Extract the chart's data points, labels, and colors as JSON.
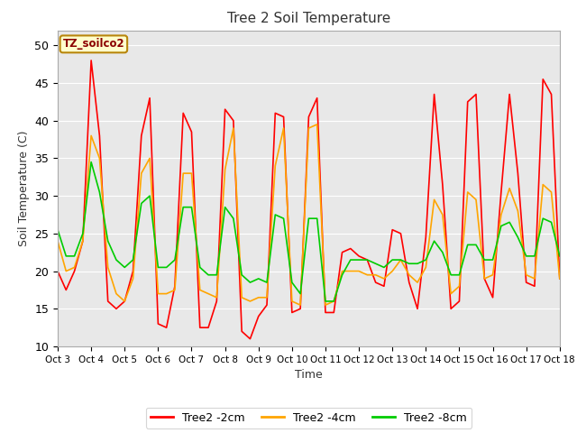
{
  "title": "Tree 2 Soil Temperature",
  "xlabel": "Time",
  "ylabel": "Soil Temperature (C)",
  "ylim": [
    10,
    52
  ],
  "xlim": [
    0,
    15
  ],
  "x_tick_labels": [
    "Oct 3",
    "Oct 4",
    "Oct 5",
    "Oct 6",
    "Oct 7",
    "Oct 8",
    "Oct 9",
    "Oct 10",
    "Oct 11",
    "Oct 12",
    "Oct 13",
    "Oct 14",
    "Oct 15",
    "Oct 16",
    "Oct 17",
    "Oct 18"
  ],
  "background_color": "#e8e8e8",
  "legend_label": "TZ_soilco2",
  "colors": {
    "red": "#ff0000",
    "orange": "#ffa500",
    "green": "#00cc00"
  },
  "series_labels": [
    "Tree2 -2cm",
    "Tree2 -4cm",
    "Tree2 -8cm"
  ],
  "data_2cm": [
    20.0,
    17.5,
    20.0,
    24.0,
    48.0,
    38.0,
    16.0,
    15.0,
    16.0,
    20.0,
    38.0,
    43.0,
    13.0,
    12.5,
    18.0,
    41.0,
    38.5,
    12.5,
    12.5,
    16.0,
    41.5,
    40.0,
    12.0,
    11.0,
    14.0,
    15.5,
    41.0,
    40.5,
    14.5,
    15.0,
    40.5,
    43.0,
    14.5,
    14.5,
    22.5,
    23.0,
    22.0,
    21.5,
    18.5,
    18.0,
    25.5,
    25.0,
    18.5,
    15.0,
    24.5,
    43.5,
    31.5,
    15.0,
    16.0,
    42.5,
    43.5,
    19.0,
    16.5,
    30.5,
    43.5,
    33.0,
    18.5,
    18.0,
    45.5,
    43.5,
    19.0
  ],
  "data_4cm": [
    24.0,
    20.0,
    20.5,
    24.0,
    38.0,
    35.0,
    20.5,
    17.0,
    16.0,
    19.0,
    33.0,
    35.0,
    17.0,
    17.0,
    17.5,
    33.0,
    33.0,
    17.5,
    17.0,
    16.5,
    33.5,
    39.0,
    16.5,
    16.0,
    16.5,
    16.5,
    34.0,
    39.0,
    16.0,
    15.5,
    39.0,
    39.5,
    15.5,
    16.0,
    20.0,
    20.0,
    20.0,
    19.5,
    19.5,
    19.0,
    20.0,
    21.5,
    19.5,
    18.5,
    20.5,
    29.5,
    27.5,
    17.0,
    18.0,
    30.5,
    29.5,
    19.0,
    19.5,
    27.5,
    31.0,
    28.0,
    19.5,
    19.0,
    31.5,
    30.5,
    19.0
  ],
  "data_8cm": [
    25.5,
    22.0,
    22.0,
    25.0,
    34.5,
    30.5,
    24.0,
    21.5,
    20.5,
    21.5,
    29.0,
    30.0,
    20.5,
    20.5,
    21.5,
    28.5,
    28.5,
    20.5,
    19.5,
    19.5,
    28.5,
    27.0,
    19.5,
    18.5,
    19.0,
    18.5,
    27.5,
    27.0,
    18.5,
    17.0,
    27.0,
    27.0,
    16.0,
    16.0,
    19.5,
    21.5,
    21.5,
    21.5,
    21.0,
    20.5,
    21.5,
    21.5,
    21.0,
    21.0,
    21.5,
    24.0,
    22.5,
    19.5,
    19.5,
    23.5,
    23.5,
    21.5,
    21.5,
    26.0,
    26.5,
    24.5,
    22.0,
    22.0,
    27.0,
    26.5,
    22.0
  ]
}
